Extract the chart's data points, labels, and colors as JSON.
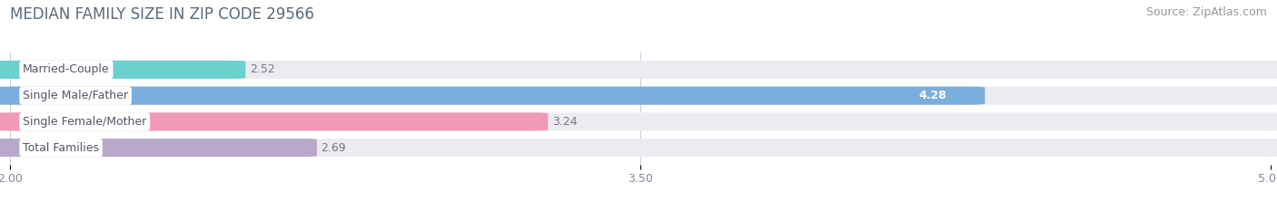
{
  "title": "MEDIAN FAMILY SIZE IN ZIP CODE 29566",
  "source": "Source: ZipAtlas.com",
  "categories": [
    "Married-Couple",
    "Single Male/Father",
    "Single Female/Mother",
    "Total Families"
  ],
  "values": [
    2.52,
    4.28,
    3.24,
    2.69
  ],
  "bar_colors": [
    "#6ecfcf",
    "#7aaedc",
    "#f09ab5",
    "#b8a8cc"
  ],
  "xlim": [
    2.0,
    5.0
  ],
  "xticks": [
    2.0,
    3.5,
    5.0
  ],
  "xtick_labels": [
    "2.00",
    "3.50",
    "5.00"
  ],
  "background_color": "#ffffff",
  "bar_bg_color": "#ebebf0",
  "title_color": "#5a6a7a",
  "source_color": "#999999",
  "label_color": "#555566",
  "value_color_outside": "#777788",
  "value_color_inside": "#ffffff",
  "title_fontsize": 12,
  "source_fontsize": 9,
  "label_fontsize": 9,
  "value_fontsize": 9,
  "bar_height": 0.62,
  "value_inside_threshold": 4.0
}
